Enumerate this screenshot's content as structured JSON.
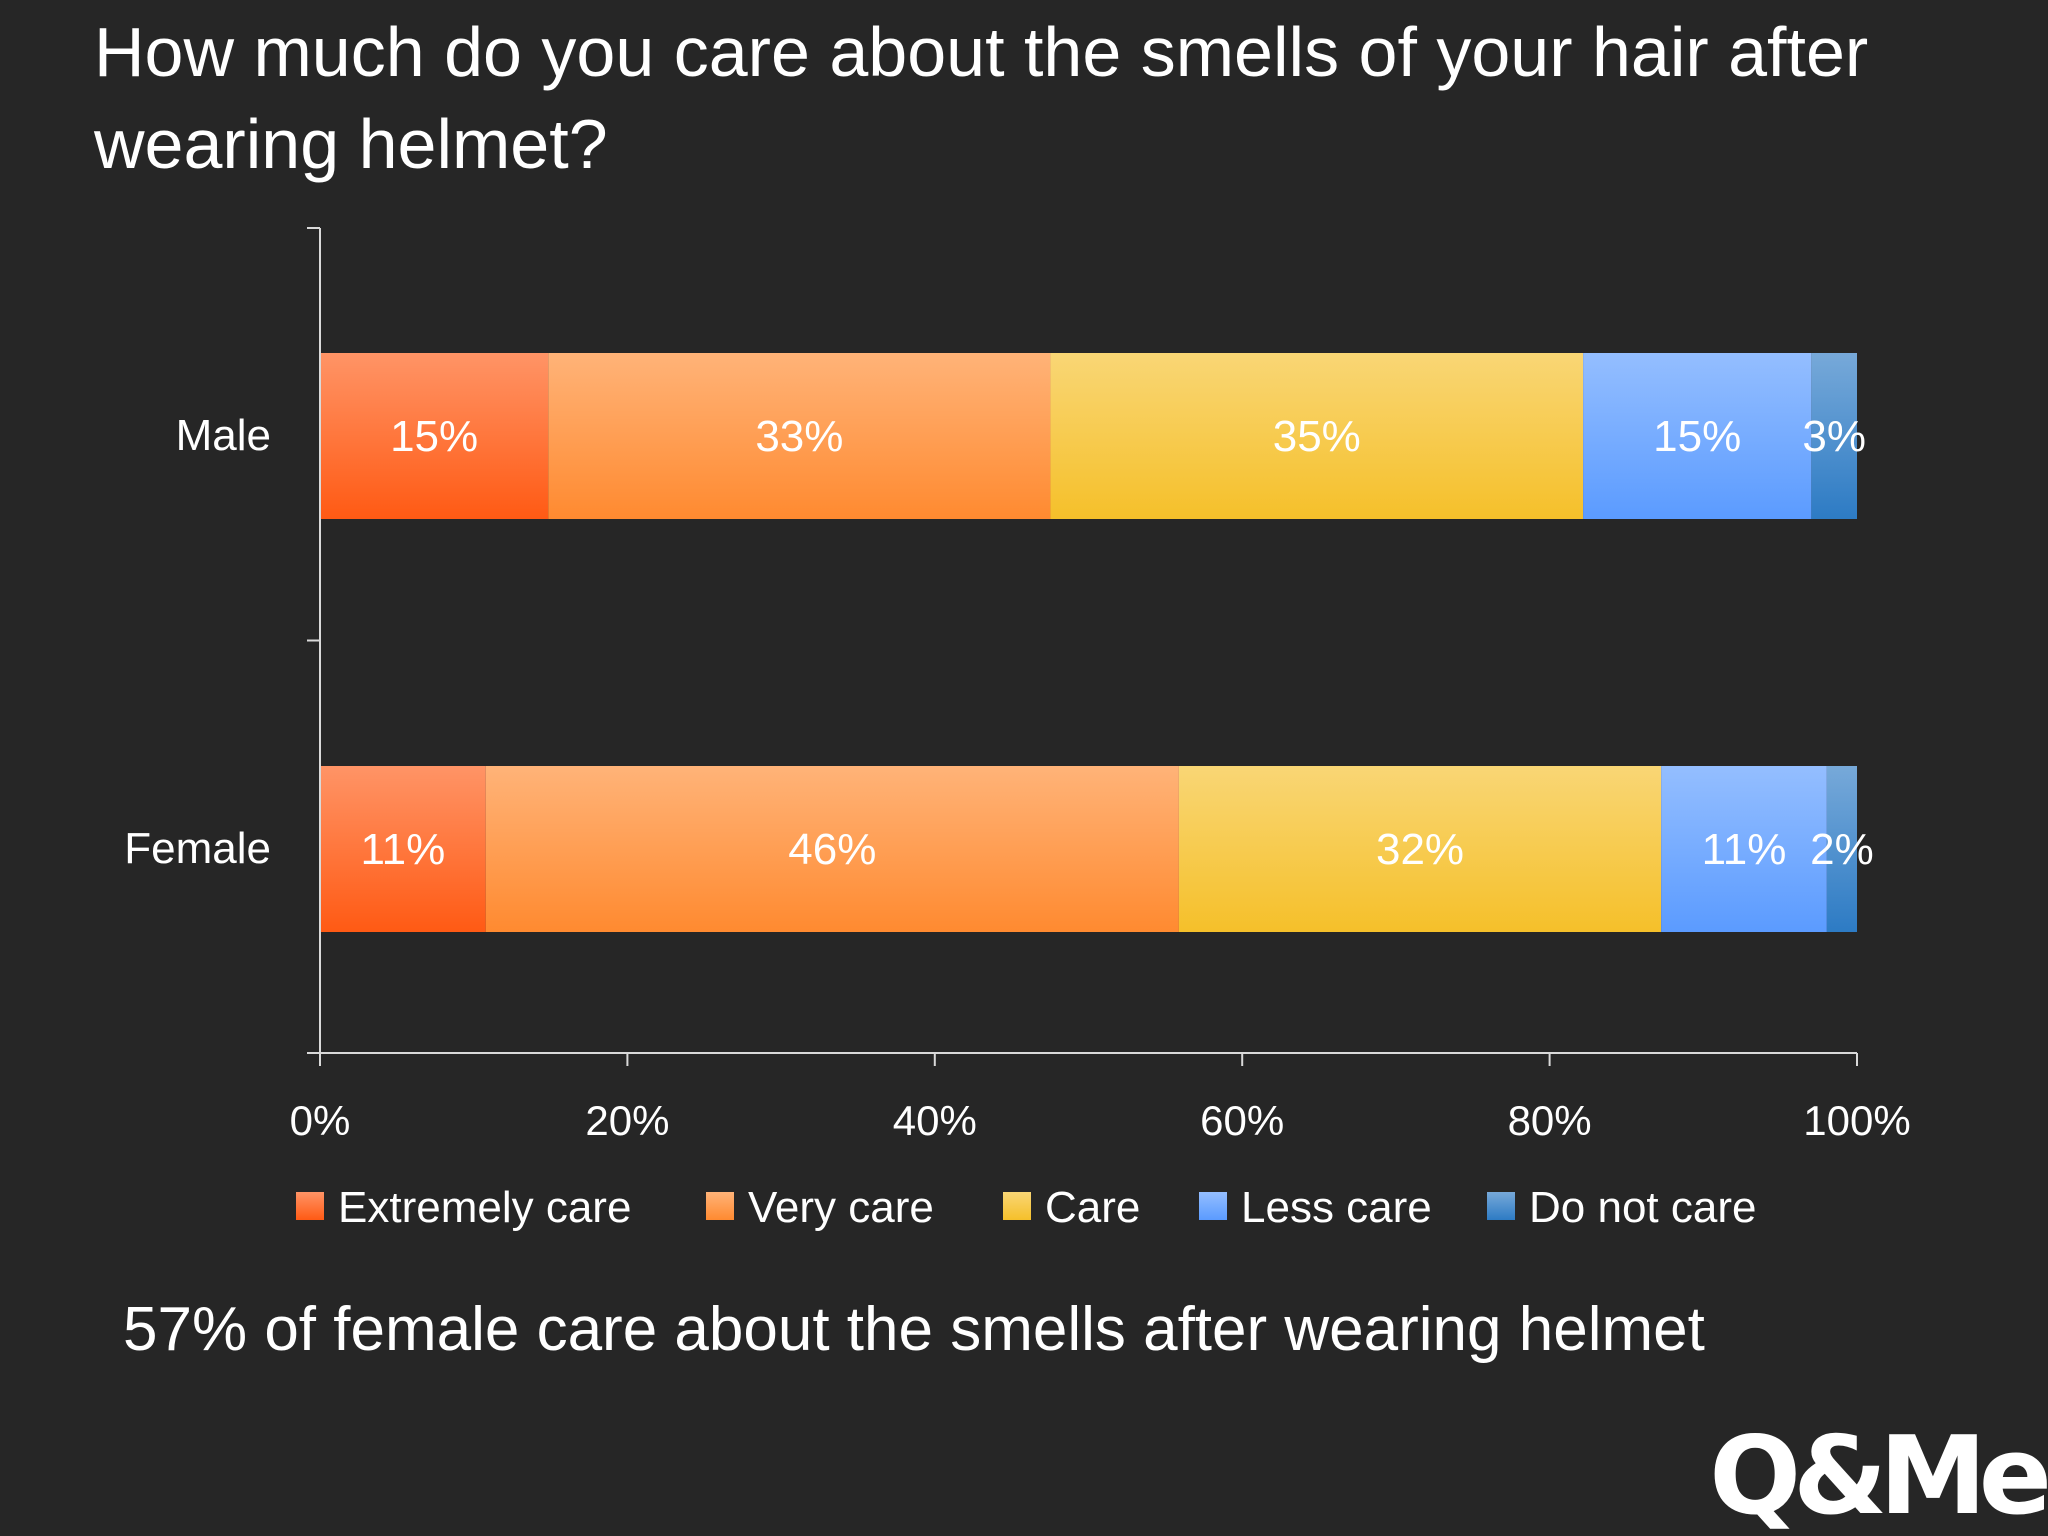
{
  "title": "How much do you care about the smells of your hair after wearing helmet?",
  "footer_note": "57% of female care about the smells after wearing helmet",
  "logo": "Q&Me",
  "colors": {
    "background": "#262626",
    "text": "#ffffff",
    "extremely_care": "#ff5a14",
    "very_care": "#ff8a30",
    "care": "#f5c02a",
    "less_care": "#5b9bff",
    "do_not_care": "#2d7bc4"
  },
  "chart_data": {
    "type": "bar",
    "orientation": "horizontal",
    "stacked": true,
    "percent_stacked": true,
    "categories": [
      "Male",
      "Female"
    ],
    "series": [
      {
        "name": "Extremely care",
        "values": [
          15,
          11
        ],
        "labels": [
          "15%",
          "11%"
        ]
      },
      {
        "name": "Very care",
        "values": [
          33,
          46
        ],
        "labels": [
          "33%",
          "46%"
        ]
      },
      {
        "name": "Care",
        "values": [
          35,
          32
        ],
        "labels": [
          "35%",
          "32%"
        ]
      },
      {
        "name": "Less care",
        "values": [
          15,
          11
        ],
        "labels": [
          "15%",
          "11%"
        ]
      },
      {
        "name": "Do not care",
        "values": [
          3,
          2
        ],
        "labels": [
          "3%",
          "2%"
        ]
      }
    ],
    "xlim": [
      0,
      100
    ],
    "x_ticks": [
      "0%",
      "20%",
      "40%",
      "60%",
      "80%",
      "100%"
    ],
    "grid": false,
    "legend_position": "bottom",
    "data_labels": true
  }
}
